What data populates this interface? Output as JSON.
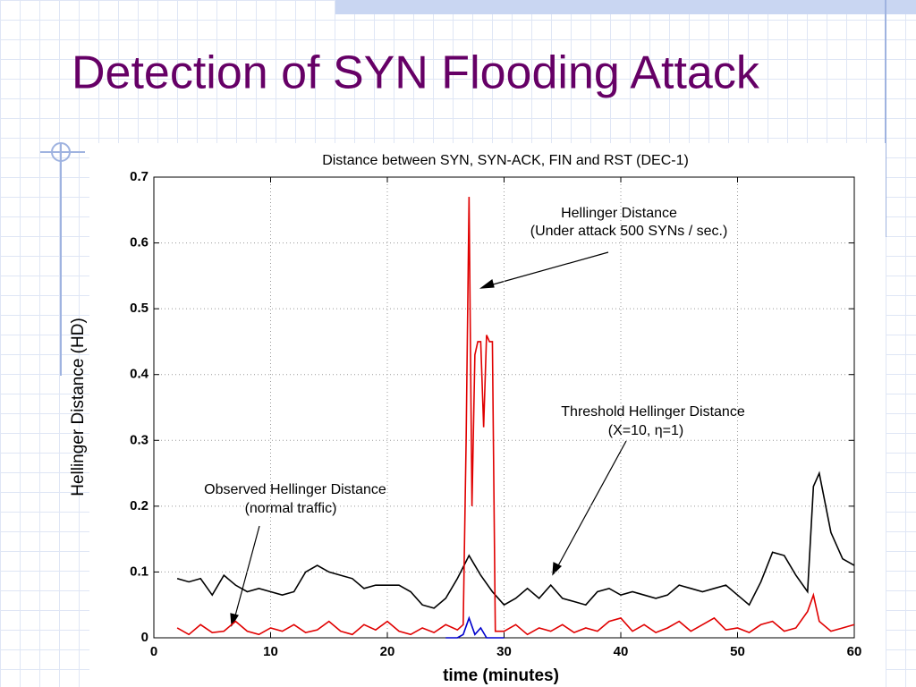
{
  "title": "Detection of SYN Flooding Attack",
  "chart_data": {
    "type": "line",
    "title": "Distance between SYN, SYN-ACK, FIN and RST (DEC-1)",
    "x_label": "time (minutes)",
    "y_label": "Hellinger Distance (HD)",
    "xlim": [
      0,
      60
    ],
    "ylim": [
      0,
      0.7
    ],
    "xticks": [
      0,
      10,
      20,
      30,
      40,
      50,
      60
    ],
    "yticks": [
      0,
      0.1,
      0.2,
      0.3,
      0.4,
      0.5,
      0.6,
      0.7
    ],
    "grid": true,
    "annotations": [
      "Hellinger Distance",
      "(Under attack 500 SYNs / sec.)",
      "Threshold Hellinger Distance",
      "(X=10, η=1)",
      "Observed Hellinger Distance",
      "(normal traffic)"
    ],
    "series": [
      {
        "color": "#000000",
        "x": [
          2,
          3,
          4,
          5,
          6,
          7,
          8,
          9,
          10,
          11,
          12,
          13,
          14,
          15,
          16,
          17,
          18,
          19,
          20,
          21,
          22,
          23,
          24,
          25,
          26,
          27,
          28,
          29,
          30,
          31,
          32,
          33,
          34,
          35,
          36,
          37,
          38,
          39,
          40,
          41,
          42,
          43,
          44,
          45,
          46,
          47,
          48,
          49,
          50,
          51,
          52,
          53,
          54,
          55,
          56,
          56.5,
          57,
          58,
          59,
          60
        ],
        "values": [
          0.09,
          0.085,
          0.09,
          0.065,
          0.095,
          0.08,
          0.07,
          0.075,
          0.07,
          0.065,
          0.07,
          0.1,
          0.11,
          0.1,
          0.095,
          0.09,
          0.075,
          0.08,
          0.08,
          0.08,
          0.07,
          0.05,
          0.045,
          0.06,
          0.09,
          0.125,
          0.095,
          0.07,
          0.05,
          0.06,
          0.075,
          0.06,
          0.08,
          0.06,
          0.055,
          0.05,
          0.07,
          0.075,
          0.065,
          0.07,
          0.065,
          0.06,
          0.065,
          0.08,
          0.075,
          0.07,
          0.075,
          0.08,
          0.065,
          0.05,
          0.085,
          0.13,
          0.125,
          0.095,
          0.07,
          0.23,
          0.25,
          0.16,
          0.12,
          0.11
        ]
      },
      {
        "color": "#e00000",
        "x": [
          2,
          3,
          4,
          5,
          6,
          7,
          8,
          9,
          10,
          11,
          12,
          13,
          14,
          15,
          16,
          17,
          18,
          19,
          20,
          21,
          22,
          23,
          24,
          25,
          26,
          26.5,
          26.75,
          27,
          27.25,
          27.5,
          27.75,
          28,
          28.25,
          28.5,
          28.75,
          29,
          29.25,
          30,
          31,
          32,
          33,
          34,
          35,
          36,
          37,
          38,
          39,
          40,
          41,
          42,
          43,
          44,
          45,
          46,
          47,
          48,
          49,
          50,
          51,
          52,
          53,
          54,
          55,
          56,
          56.5,
          57,
          58,
          59,
          60
        ],
        "values": [
          0.015,
          0.005,
          0.02,
          0.008,
          0.01,
          0.025,
          0.01,
          0.005,
          0.015,
          0.01,
          0.02,
          0.008,
          0.012,
          0.025,
          0.01,
          0.005,
          0.02,
          0.012,
          0.025,
          0.01,
          0.005,
          0.015,
          0.008,
          0.02,
          0.012,
          0.02,
          0.3,
          0.67,
          0.2,
          0.43,
          0.45,
          0.45,
          0.32,
          0.46,
          0.45,
          0.45,
          0.01,
          0.01,
          0.02,
          0.005,
          0.015,
          0.01,
          0.02,
          0.008,
          0.015,
          0.01,
          0.025,
          0.03,
          0.01,
          0.02,
          0.008,
          0.015,
          0.025,
          0.01,
          0.02,
          0.03,
          0.012,
          0.015,
          0.008,
          0.02,
          0.025,
          0.01,
          0.015,
          0.04,
          0.065,
          0.025,
          0.01,
          0.015,
          0.02
        ]
      },
      {
        "color": "#0000cc",
        "x": [
          25,
          26,
          26.5,
          27,
          27.5,
          28,
          28.5,
          29,
          30
        ],
        "values": [
          0,
          0,
          0.005,
          0.03,
          0.005,
          0.015,
          0,
          0,
          0
        ]
      }
    ]
  }
}
